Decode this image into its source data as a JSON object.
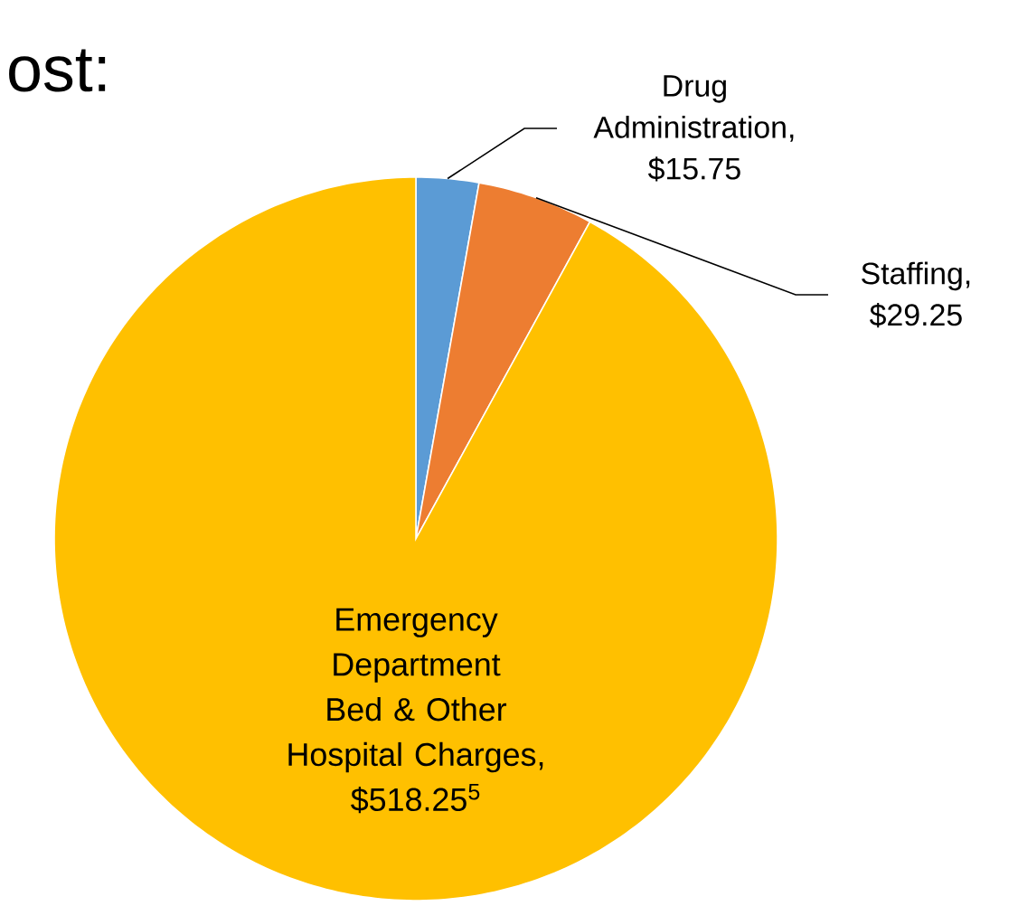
{
  "chart_data": {
    "type": "pie",
    "title": "ost:",
    "categories": [
      "Drug Administration, $15.75",
      "Staffing, $29.25",
      "Emergency Department Bed & Other Hospital Charges, $518.25$^{5}$"
    ],
    "values": [
      15.75,
      29.25,
      518.25
    ],
    "colors": [
      "#5b9bd5",
      "#ed7d31",
      "#ffc000"
    ]
  }
}
